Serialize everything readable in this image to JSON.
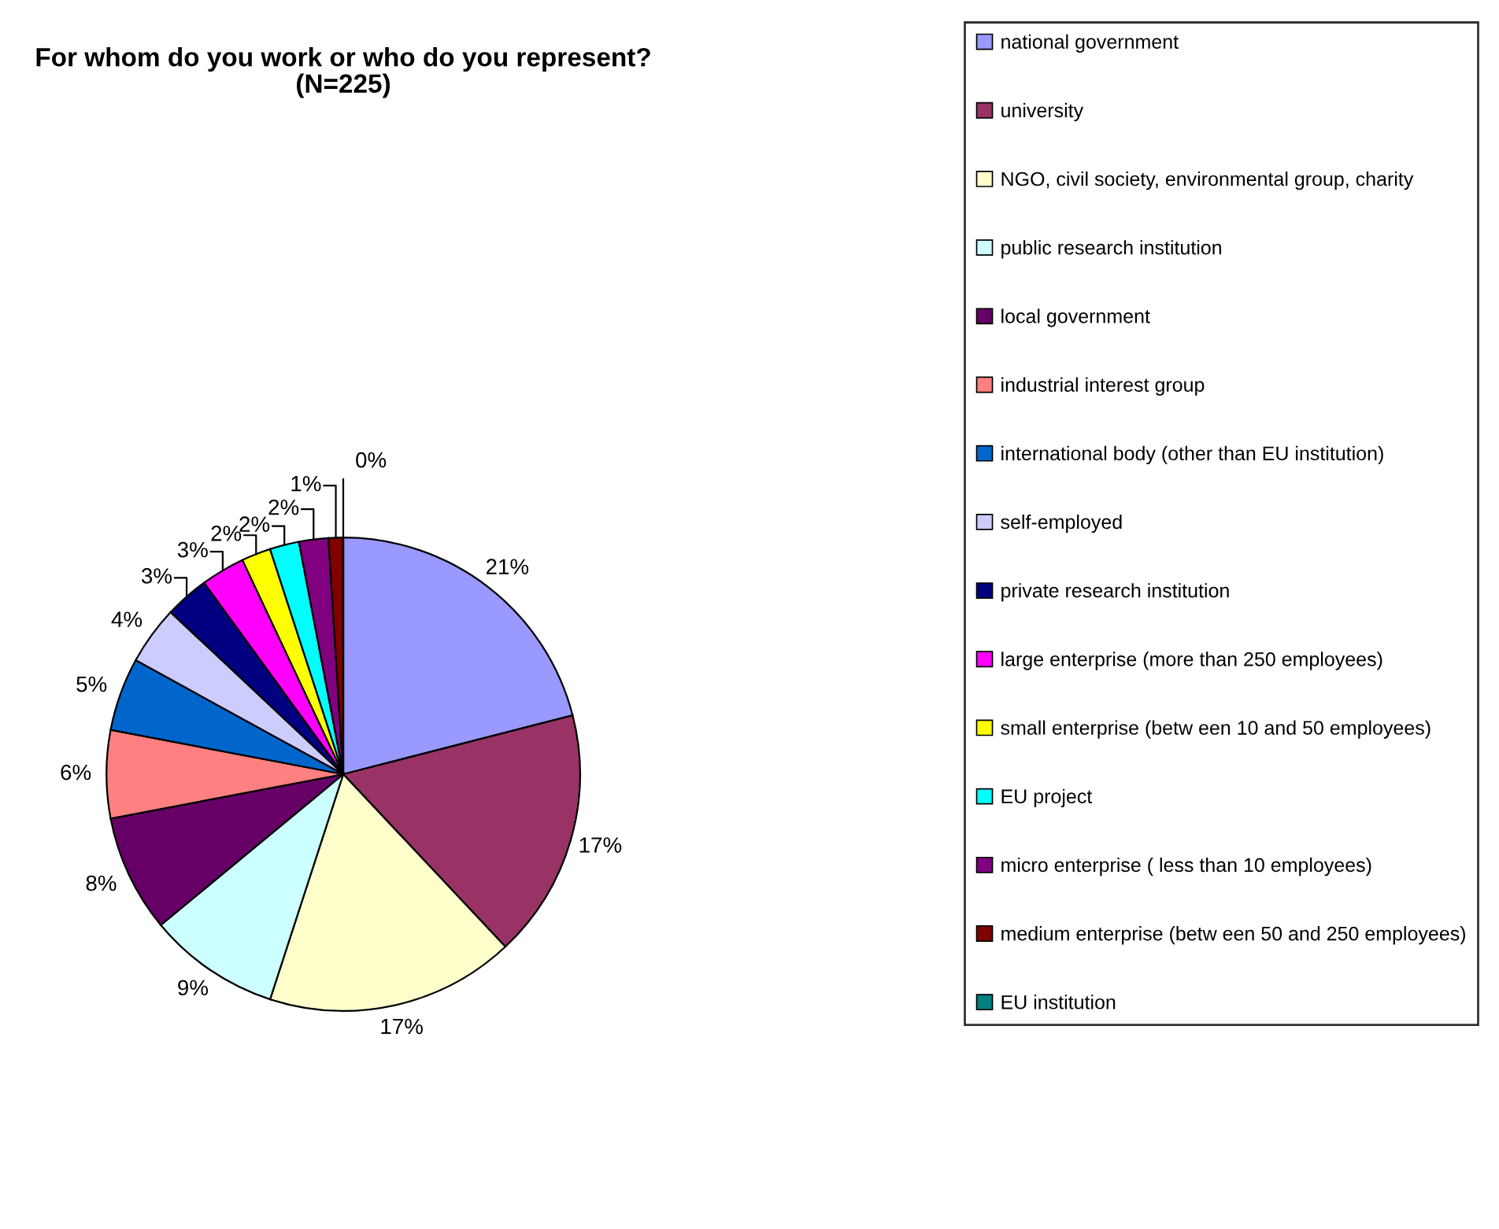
{
  "chart_data": {
    "type": "pie",
    "title": "For whom do you work or who do you represent?\n(N=225)",
    "categories": [
      "national government",
      "university",
      "NGO, civil society, environmental group, charity",
      "public research institution",
      "local government",
      "industrial interest group",
      "international body (other than EU institution)",
      "self-employed",
      "private research institution",
      "large enterprise (more than 250 employees)",
      "small enterprise (betw een 10 and 50 employees)",
      "EU project",
      "micro enterprise ( less than 10 employees)",
      "medium enterprise (betw een 50 and 250 employees)",
      "EU institution"
    ],
    "values": [
      21,
      17,
      17,
      9,
      8,
      6,
      5,
      4,
      3,
      3,
      2,
      2,
      2,
      1,
      0
    ],
    "value_labels": [
      "21%",
      "17%",
      "17%",
      "9%",
      "8%",
      "6%",
      "5%",
      "4%",
      "3%",
      "3%",
      "2%",
      "2%",
      "2%",
      "1%",
      "0%"
    ],
    "colors": [
      "#9999ff",
      "#993366",
      "#ffffcc",
      "#ccffff",
      "#660066",
      "#ff8080",
      "#0066cc",
      "#ccccff",
      "#000080",
      "#ff00ff",
      "#ffff00",
      "#00ffff",
      "#800080",
      "#800000",
      "#008080"
    ],
    "legend": "right"
  }
}
